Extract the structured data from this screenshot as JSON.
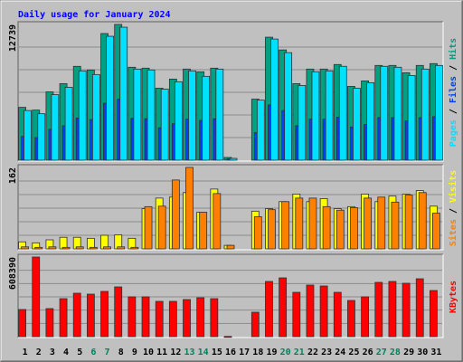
{
  "title": "Daily usage for January 2024",
  "legend_separator": " / ",
  "categories": [
    "1",
    "2",
    "3",
    "4",
    "5",
    "6",
    "7",
    "8",
    "9",
    "10",
    "11",
    "12",
    "13",
    "14",
    "15",
    "16",
    "17",
    "18",
    "19",
    "20",
    "21",
    "22",
    "23",
    "24",
    "25",
    "26",
    "27",
    "28",
    "29",
    "30",
    "31"
  ],
  "category_colors": [
    "#000000",
    "#000000",
    "#000000",
    "#000000",
    "#000000",
    "#00805c",
    "#00805c",
    "#000000",
    "#000000",
    "#000000",
    "#000000",
    "#000000",
    "#00805c",
    "#00805c",
    "#000000",
    "#000000",
    "#000000",
    "#000000",
    "#000000",
    "#00805c",
    "#00805c",
    "#000000",
    "#000000",
    "#000000",
    "#000000",
    "#000000",
    "#00805c",
    "#00805c",
    "#000000",
    "#000000",
    "#000000"
  ],
  "chart_data": [
    {
      "type": "bar",
      "ylim": [
        0,
        12739
      ],
      "yticks": [
        12739
      ],
      "series": [
        {
          "name": "Pages",
          "color": "#00e0ff",
          "values": [
            4660,
            4360,
            6150,
            6840,
            8380,
            8040,
            11630,
            12480,
            8550,
            8470,
            6670,
            7360,
            8380,
            7870,
            8550,
            170,
            null,
            5640,
            11370,
            10090,
            7010,
            8300,
            8380,
            8810,
            6750,
            7270,
            8810,
            8720,
            7950,
            8550,
            8890
          ]
        },
        {
          "name": "Files",
          "color": "#0040ff",
          "values": [
            2230,
            2120,
            2890,
            3230,
            3960,
            3810,
            5350,
            5730,
            3920,
            3890,
            3040,
            3420,
            3850,
            3730,
            3890,
            120,
            null,
            2580,
            5190,
            4660,
            3230,
            3850,
            3850,
            4040,
            3120,
            3350,
            4000,
            4000,
            3690,
            4000,
            4080
          ]
        },
        {
          "name": "Hits",
          "color": "#00a080",
          "values": [
            4959,
            4703,
            6413,
            7182,
            8807,
            8465,
            11885,
            12739,
            8721,
            8636,
            6755,
            7610,
            8550,
            8294,
            8636,
            257,
            null,
            5729,
            11543,
            10346,
            7182,
            8550,
            8550,
            8978,
            6926,
            7439,
            8892,
            8892,
            8208,
            8892,
            9063
          ]
        }
      ]
    },
    {
      "type": "bar",
      "ylim": [
        0,
        162
      ],
      "yticks": [
        162
      ],
      "series": [
        {
          "name": "Sites",
          "color": "#ff8000",
          "values": [
            4,
            3,
            4,
            3,
            4,
            3,
            4,
            4,
            3,
            84,
            85,
            137,
            162,
            73,
            110,
            7,
            null,
            64,
            78,
            94,
            101,
            101,
            84,
            77,
            82,
            101,
            103,
            93,
            107,
            112,
            71
          ]
        },
        {
          "name": "Visits",
          "color": "#ffff00",
          "values": [
            14,
            12,
            18,
            23,
            23,
            21,
            27,
            28,
            21,
            80,
            101,
            103,
            112,
            73,
            119,
            7,
            null,
            75,
            80,
            94,
            109,
            94,
            100,
            80,
            84,
            109,
            94,
            105,
            109,
            116,
            85
          ]
        }
      ]
    },
    {
      "type": "bar",
      "ylim": [
        0,
        608390
      ],
      "yticks": [
        608390
      ],
      "series": [
        {
          "name": "KBytes",
          "color": "#ff0000",
          "values": [
            207400,
            608390,
            214300,
            290300,
            331800,
            324900,
            345700,
            380200,
            304200,
            304200,
            269600,
            269600,
            283400,
            297300,
            290300,
            2000,
            null,
            186700,
            421700,
            449300,
            338700,
            394000,
            387100,
            338700,
            276500,
            304200,
            414800,
            421700,
            407900,
            442400,
            352600
          ]
        }
      ]
    }
  ]
}
